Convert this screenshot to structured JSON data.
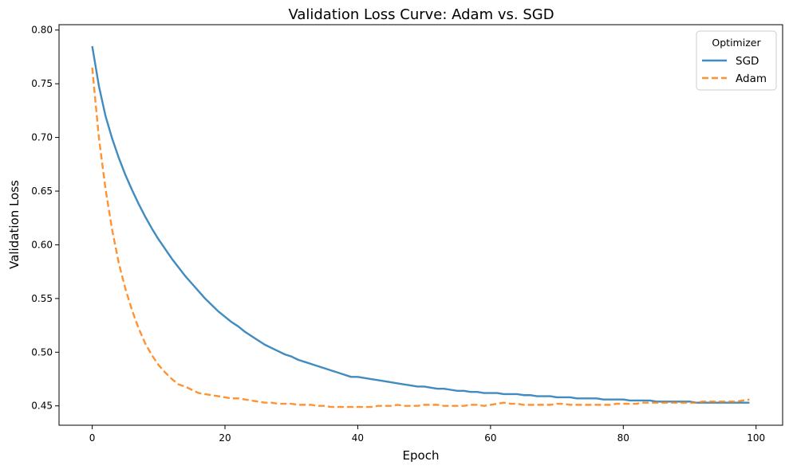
{
  "chart_data": {
    "type": "line",
    "title": "Validation Loss Curve: Adam vs. SGD",
    "xlabel": "Epoch",
    "ylabel": "Validation Loss",
    "xlim": [
      -5,
      104
    ],
    "ylim": [
      0.432,
      0.805
    ],
    "x_ticks": [
      0,
      20,
      40,
      60,
      80,
      100
    ],
    "x_tick_labels": [
      "0",
      "20",
      "40",
      "60",
      "80",
      "100"
    ],
    "y_ticks": [
      0.45,
      0.5,
      0.55,
      0.6,
      0.65,
      0.7,
      0.75,
      0.8
    ],
    "y_tick_labels": [
      "0.45",
      "0.50",
      "0.55",
      "0.60",
      "0.65",
      "0.70",
      "0.75",
      "0.80"
    ],
    "grid": false,
    "legend": {
      "title": "Optimizer",
      "position": "top-right"
    },
    "x": [
      0,
      1,
      2,
      3,
      4,
      5,
      6,
      7,
      8,
      9,
      10,
      11,
      12,
      13,
      14,
      15,
      16,
      17,
      18,
      19,
      20,
      21,
      22,
      23,
      24,
      25,
      26,
      27,
      28,
      29,
      30,
      31,
      32,
      33,
      34,
      35,
      36,
      37,
      38,
      39,
      40,
      41,
      42,
      43,
      44,
      45,
      46,
      47,
      48,
      49,
      50,
      51,
      52,
      53,
      54,
      55,
      56,
      57,
      58,
      59,
      60,
      61,
      62,
      63,
      64,
      65,
      66,
      67,
      68,
      69,
      70,
      71,
      72,
      73,
      74,
      75,
      76,
      77,
      78,
      79,
      80,
      81,
      82,
      83,
      84,
      85,
      86,
      87,
      88,
      89,
      90,
      91,
      92,
      93,
      94,
      95,
      96,
      97,
      98,
      99
    ],
    "series": [
      {
        "name": "SGD",
        "color": "#1f77b4",
        "style": "solid",
        "values": [
          0.785,
          0.748,
          0.72,
          0.699,
          0.681,
          0.665,
          0.651,
          0.638,
          0.626,
          0.615,
          0.605,
          0.596,
          0.587,
          0.579,
          0.571,
          0.564,
          0.557,
          0.55,
          0.544,
          0.538,
          0.533,
          0.528,
          0.524,
          0.519,
          0.515,
          0.511,
          0.507,
          0.504,
          0.501,
          0.498,
          0.496,
          0.493,
          0.491,
          0.489,
          0.487,
          0.485,
          0.483,
          0.481,
          0.479,
          0.477,
          0.477,
          0.476,
          0.475,
          0.474,
          0.473,
          0.472,
          0.471,
          0.47,
          0.469,
          0.468,
          0.468,
          0.467,
          0.466,
          0.466,
          0.465,
          0.464,
          0.464,
          0.463,
          0.463,
          0.462,
          0.462,
          0.462,
          0.461,
          0.461,
          0.461,
          0.46,
          0.46,
          0.459,
          0.459,
          0.459,
          0.458,
          0.458,
          0.458,
          0.457,
          0.457,
          0.457,
          0.457,
          0.456,
          0.456,
          0.456,
          0.456,
          0.455,
          0.455,
          0.455,
          0.455,
          0.454,
          0.454,
          0.454,
          0.454,
          0.454,
          0.454,
          0.453,
          0.453,
          0.453,
          0.453,
          0.453,
          0.453,
          0.453,
          0.453,
          0.453
        ]
      },
      {
        "name": "Adam",
        "color": "#ff7f0e",
        "style": "dashed",
        "values": [
          0.765,
          0.7,
          0.652,
          0.614,
          0.583,
          0.559,
          0.539,
          0.522,
          0.508,
          0.497,
          0.488,
          0.481,
          0.475,
          0.47,
          0.468,
          0.465,
          0.462,
          0.461,
          0.46,
          0.459,
          0.458,
          0.457,
          0.457,
          0.456,
          0.455,
          0.454,
          0.453,
          0.453,
          0.452,
          0.452,
          0.452,
          0.451,
          0.451,
          0.451,
          0.45,
          0.45,
          0.449,
          0.449,
          0.449,
          0.449,
          0.449,
          0.449,
          0.449,
          0.45,
          0.45,
          0.45,
          0.451,
          0.45,
          0.45,
          0.45,
          0.451,
          0.451,
          0.451,
          0.45,
          0.45,
          0.45,
          0.45,
          0.451,
          0.451,
          0.45,
          0.451,
          0.452,
          0.453,
          0.452,
          0.452,
          0.451,
          0.451,
          0.451,
          0.451,
          0.451,
          0.452,
          0.452,
          0.451,
          0.451,
          0.451,
          0.451,
          0.451,
          0.451,
          0.451,
          0.452,
          0.452,
          0.452,
          0.452,
          0.453,
          0.453,
          0.453,
          0.453,
          0.453,
          0.453,
          0.453,
          0.453,
          0.453,
          0.454,
          0.454,
          0.454,
          0.454,
          0.454,
          0.454,
          0.455,
          0.456
        ]
      }
    ]
  }
}
